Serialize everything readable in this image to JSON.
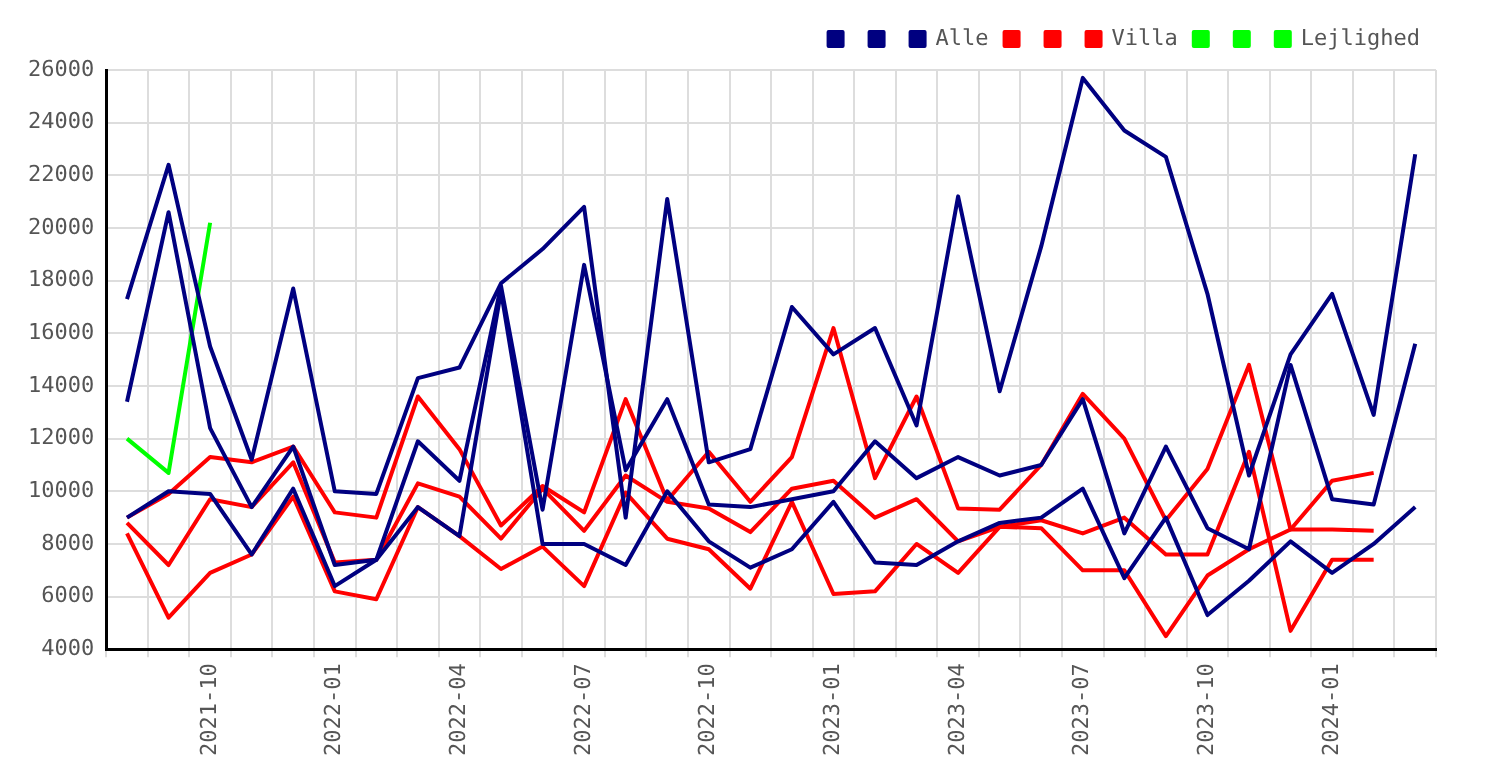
{
  "chart_data": {
    "type": "line",
    "categories": [
      null,
      null,
      "2021-10",
      null,
      null,
      "2022-01",
      null,
      null,
      "2022-04",
      null,
      null,
      "2022-07",
      null,
      null,
      "2022-10",
      null,
      null,
      "2023-01",
      null,
      null,
      "2023-04",
      null,
      null,
      "2023-07",
      null,
      null,
      "2023-10",
      null,
      null,
      "2024-01",
      null,
      null
    ],
    "series": [
      {
        "color": "#000080",
        "values": [
          13400,
          20600,
          12400,
          9400,
          11700,
          7200,
          7400,
          11900,
          10400,
          17800,
          9300,
          18600,
          10800,
          13500,
          9500,
          9400,
          9700,
          10000,
          11900,
          10500,
          11300,
          10600,
          11000,
          13500,
          8400,
          11700,
          8600,
          7800,
          14800,
          9700,
          9500,
          15600
        ]
      },
      {
        "color": "#000080",
        "values": [
          9000,
          10000,
          9900,
          7600,
          10100,
          6400,
          7400,
          9400,
          8300,
          17600,
          8000,
          8000,
          7200,
          10000,
          8100,
          7100,
          7800,
          9600,
          7300,
          7200,
          8100,
          8800,
          9000,
          10100,
          6700,
          9000,
          5300,
          6600,
          8100,
          6900,
          8000,
          9400
        ]
      },
      {
        "name": "Alle",
        "color": "#000080",
        "values": [
          17300,
          22400,
          15500,
          11200,
          17700,
          10000,
          9900,
          14300,
          14700,
          17900,
          19200,
          20800,
          9000,
          21100,
          11100,
          11600,
          17000,
          15200,
          16200,
          12500,
          21200,
          13800,
          19300,
          25700,
          23700,
          22700,
          17500,
          10600,
          15200,
          17500,
          12900,
          22800
        ]
      },
      {
        "color": "#ff0000",
        "values": [
          8800,
          7200,
          9700,
          9400,
          11100,
          7300,
          7400,
          10300,
          9800,
          8200,
          10100,
          8500,
          10600,
          9600,
          9350,
          8450,
          10100,
          10400,
          9000,
          9700,
          8100,
          8650,
          8900,
          8400,
          9000,
          7600,
          7600,
          11500,
          4700,
          7400,
          7400,
          null
        ]
      },
      {
        "color": "#ff0000",
        "values": [
          8400,
          5200,
          6900,
          7600,
          9800,
          6200,
          5900,
          9400,
          8300,
          7050,
          7900,
          6400,
          9950,
          8200,
          7800,
          6300,
          9600,
          6100,
          6200,
          8000,
          6900,
          8650,
          8600,
          7000,
          7000,
          4500,
          6800,
          7800,
          8550,
          10400,
          10700,
          null
        ]
      },
      {
        "name": "Villa",
        "color": "#ff0000",
        "values": [
          9000,
          9900,
          11300,
          11100,
          11700,
          9200,
          9000,
          13600,
          11600,
          8700,
          10200,
          9200,
          13500,
          9650,
          11500,
          9600,
          11300,
          16200,
          10500,
          13600,
          9350,
          9300,
          11000,
          13700,
          12000,
          8900,
          10850,
          14800,
          8550,
          8550,
          8500,
          null
        ]
      },
      {
        "color": "#00ff00",
        "values": [
          null,
          null,
          null,
          null,
          null,
          null,
          null,
          null,
          null,
          null,
          null,
          null,
          null,
          null,
          null,
          null,
          null,
          null,
          null,
          null,
          null,
          null,
          null,
          null,
          null,
          null,
          null,
          null,
          null,
          null,
          null,
          null
        ]
      },
      {
        "color": "#00ff00",
        "values": [
          null,
          null,
          null,
          null,
          null,
          null,
          null,
          null,
          null,
          null,
          null,
          null,
          null,
          null,
          null,
          null,
          null,
          null,
          null,
          null,
          null,
          null,
          null,
          null,
          null,
          null,
          null,
          null,
          null,
          null,
          null,
          null
        ]
      },
      {
        "name": "Lejlighed",
        "color": "#00ff00",
        "values": [
          12000,
          10700,
          20200,
          null,
          null,
          null,
          null,
          null,
          null,
          null,
          null,
          null,
          null,
          null,
          null,
          null,
          null,
          null,
          null,
          null,
          null,
          null,
          null,
          null,
          null,
          null,
          null,
          null,
          null,
          null,
          null,
          null
        ]
      }
    ],
    "ylim": [
      4000,
      26000
    ],
    "yticks": [
      4000,
      6000,
      8000,
      10000,
      12000,
      14000,
      16000,
      18000,
      20000,
      22000,
      24000,
      26000
    ],
    "grid": true,
    "legend": "top right",
    "marker": "none"
  }
}
